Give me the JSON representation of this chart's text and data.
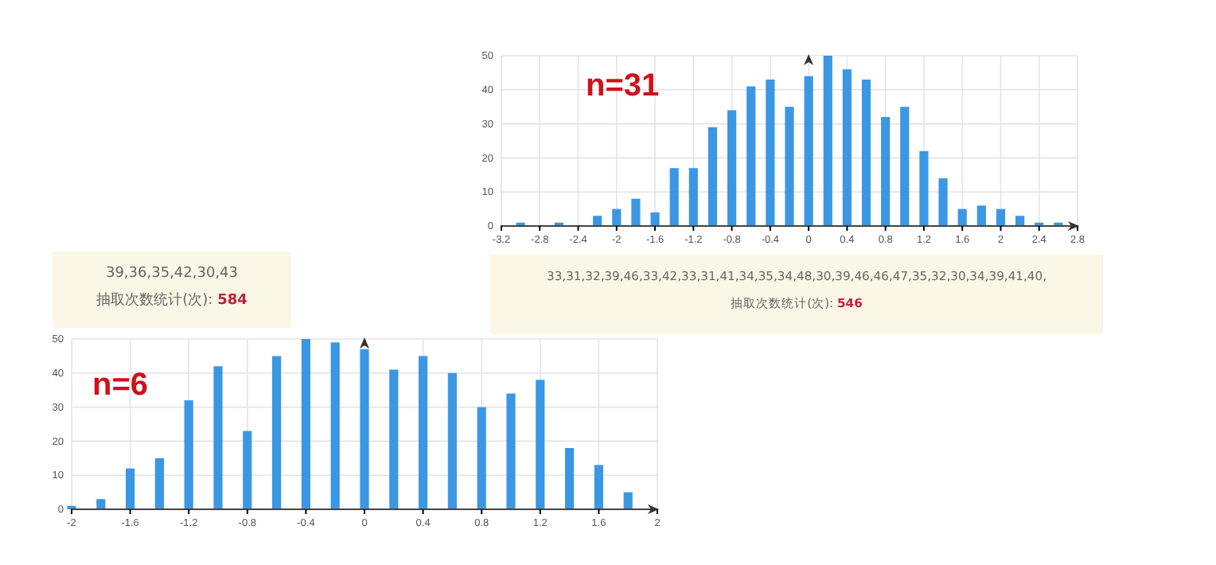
{
  "chart_data": [
    {
      "type": "bar",
      "title": "n=31",
      "color": "#3b97e3",
      "grid": true,
      "x": [
        -3.0,
        -2.8,
        -2.6,
        -2.4,
        -2.2,
        -2.0,
        -1.8,
        -1.6,
        -1.4,
        -1.2,
        -1.0,
        -0.8,
        -0.6,
        -0.4,
        -0.2,
        0,
        0.2,
        0.4,
        0.6,
        0.8,
        1.0,
        1.2,
        1.4,
        1.6,
        1.8,
        2.0,
        2.2,
        2.4,
        2.6
      ],
      "values": [
        1,
        0,
        1,
        0,
        3,
        5,
        8,
        4,
        17,
        17,
        29,
        34,
        41,
        43,
        35,
        44,
        50,
        46,
        43,
        32,
        35,
        22,
        14,
        5,
        6,
        5,
        3,
        1,
        1
      ],
      "xlim": [
        -3.2,
        2.8
      ],
      "xticks": [
        -3.2,
        -2.8,
        -2.4,
        -2,
        -1.6,
        -1.2,
        -0.8,
        -0.4,
        0,
        0.4,
        0.8,
        1.2,
        1.6,
        2,
        2.4,
        2.8
      ],
      "ylim": [
        0,
        50
      ],
      "yticks": [
        0,
        10,
        20,
        30,
        40,
        50
      ],
      "annotations": [
        "33,31,32,39,46,33,42,33,31,41,34,35,34,48,30,39,46,46,47,35,32,30,34,39,41,40,",
        "抽取次数统计(次): 546"
      ]
    },
    {
      "type": "bar",
      "title": "n=6",
      "color": "#3b97e3",
      "grid": true,
      "x": [
        -2.0,
        -1.8,
        -1.6,
        -1.4,
        -1.2,
        -1.0,
        -0.8,
        -0.6,
        -0.4,
        -0.2,
        0,
        0.2,
        0.4,
        0.6,
        0.8,
        1.0,
        1.2,
        1.4,
        1.6,
        1.8
      ],
      "values": [
        1,
        3,
        12,
        15,
        32,
        42,
        23,
        45,
        50,
        49,
        47,
        41,
        45,
        40,
        30,
        34,
        38,
        18,
        13,
        5
      ],
      "xlim": [
        -2,
        2
      ],
      "xticks": [
        -2,
        -1.6,
        -1.2,
        -0.8,
        -0.4,
        0,
        0.4,
        0.8,
        1.2,
        1.6,
        2
      ],
      "ylim": [
        0,
        50
      ],
      "yticks": [
        0,
        10,
        20,
        30,
        40,
        50
      ],
      "annotations": [
        "39,36,35,42,30,43",
        "抽取次数统计(次): 584"
      ]
    }
  ]
}
